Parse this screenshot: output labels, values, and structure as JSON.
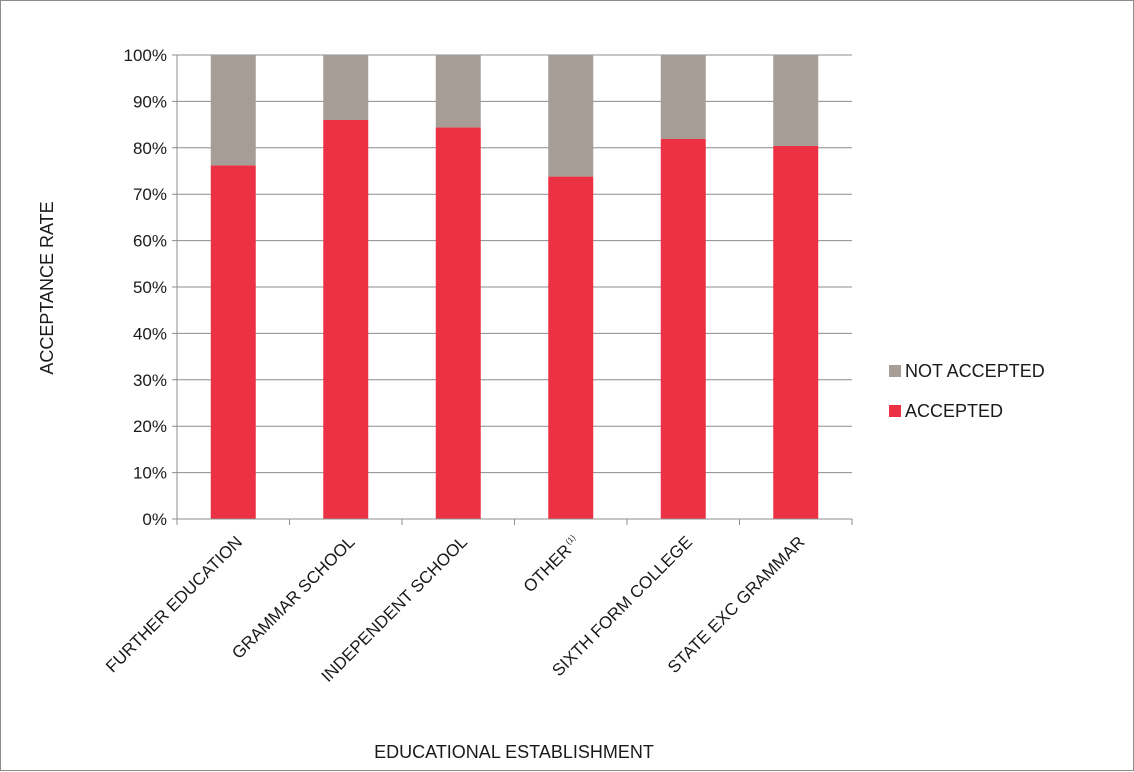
{
  "chart_data": {
    "type": "bar",
    "stacked": true,
    "percent_stacked": true,
    "title": "",
    "xlabel": "EDUCATIONAL ESTABLISHMENT",
    "ylabel": "ACCEPTANCE RATE",
    "ylim": [
      0,
      100
    ],
    "y_tick_labels": [
      "0%",
      "10%",
      "20%",
      "30%",
      "40%",
      "50%",
      "60%",
      "70%",
      "80%",
      "90%",
      "100%"
    ],
    "categories": [
      "FURTHER EDUCATION",
      "GRAMMAR SCHOOL",
      "INDEPENDENT SCHOOL",
      "OTHER",
      "SIXTH FORM COLLEGE",
      "STATE EXC GRAMMAR"
    ],
    "category_superscripts": [
      "",
      "",
      "",
      "(1)",
      "",
      ""
    ],
    "series": [
      {
        "name": "ACCEPTED",
        "color": "#ed3144",
        "values": [
          76.2,
          86.0,
          84.4,
          73.8,
          81.9,
          80.4
        ]
      },
      {
        "name": "NOT ACCEPTED",
        "color": "#a69e96",
        "values": [
          23.8,
          14.0,
          15.6,
          26.2,
          18.1,
          19.6
        ]
      }
    ],
    "legend_order": [
      "NOT ACCEPTED",
      "ACCEPTED"
    ],
    "legend_position": "right",
    "grid": true,
    "grid_color": "#8c8c8c"
  }
}
